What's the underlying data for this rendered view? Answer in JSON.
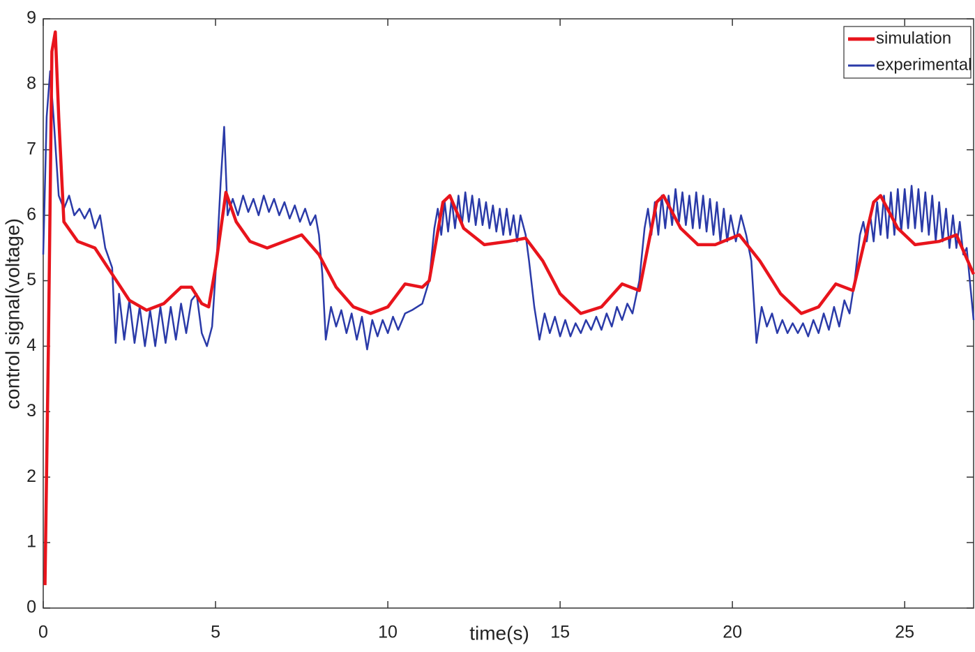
{
  "chart_data": {
    "type": "line",
    "xlabel": "time(s)",
    "ylabel": "control signal(voltage)",
    "xlim": [
      0,
      27
    ],
    "ylim": [
      0,
      9
    ],
    "xticks": [
      0,
      5,
      10,
      15,
      20,
      25
    ],
    "yticks": [
      0,
      1,
      2,
      3,
      4,
      5,
      6,
      7,
      8,
      9
    ],
    "legend": "upper right",
    "series": [
      {
        "name": "simulation",
        "color": "#e8141c",
        "x": [
          0.05,
          0.15,
          0.25,
          0.35,
          0.45,
          0.6,
          1,
          1.5,
          2,
          2.5,
          3,
          3.5,
          4,
          4.3,
          4.6,
          4.8,
          5,
          5.3,
          5.6,
          6,
          6.5,
          7,
          7.5,
          8,
          8.5,
          9,
          9.5,
          10,
          10.5,
          11,
          11.2,
          11.6,
          11.8,
          12.2,
          12.8,
          13.5,
          14,
          14.5,
          15,
          15.6,
          16.2,
          16.8,
          17.3,
          17.8,
          18,
          18.5,
          19,
          19.5,
          20.2,
          20.8,
          21.4,
          22,
          22.5,
          23,
          23.5,
          24.1,
          24.3,
          24.8,
          25.3,
          26,
          26.5,
          27
        ],
        "values": [
          0.35,
          4,
          8.5,
          8.8,
          7.5,
          5.9,
          5.6,
          5.5,
          5.1,
          4.7,
          4.55,
          4.65,
          4.9,
          4.9,
          4.65,
          4.6,
          5.2,
          6.35,
          5.9,
          5.6,
          5.5,
          5.6,
          5.7,
          5.4,
          4.9,
          4.6,
          4.5,
          4.6,
          4.95,
          4.9,
          5.0,
          6.2,
          6.3,
          5.8,
          5.55,
          5.6,
          5.65,
          5.3,
          4.8,
          4.5,
          4.6,
          4.95,
          4.85,
          6.2,
          6.3,
          5.8,
          5.55,
          5.55,
          5.7,
          5.3,
          4.8,
          4.5,
          4.6,
          4.95,
          4.85,
          6.2,
          6.3,
          5.8,
          5.55,
          5.6,
          5.7,
          5.1
        ]
      },
      {
        "name": "experimental",
        "color": "#2a3aa8",
        "x": [
          0,
          0.1,
          0.2,
          0.3,
          0.45,
          0.6,
          0.75,
          0.9,
          1.05,
          1.2,
          1.35,
          1.5,
          1.65,
          1.8,
          2.0,
          2.1,
          2.2,
          2.35,
          2.5,
          2.65,
          2.8,
          2.95,
          3.1,
          3.25,
          3.4,
          3.55,
          3.7,
          3.85,
          4.0,
          4.15,
          4.3,
          4.45,
          4.6,
          4.75,
          4.9,
          5.05,
          5.15,
          5.25,
          5.35,
          5.5,
          5.65,
          5.8,
          5.95,
          6.1,
          6.25,
          6.4,
          6.55,
          6.7,
          6.85,
          7.0,
          7.15,
          7.3,
          7.45,
          7.6,
          7.75,
          7.9,
          8.0,
          8.1,
          8.2,
          8.35,
          8.5,
          8.65,
          8.8,
          8.95,
          9.1,
          9.25,
          9.4,
          9.55,
          9.7,
          9.85,
          10.0,
          10.15,
          10.3,
          10.5,
          10.7,
          11.0,
          11.2,
          11.35,
          11.45,
          11.55,
          11.65,
          11.75,
          11.85,
          11.95,
          12.05,
          12.15,
          12.25,
          12.35,
          12.45,
          12.55,
          12.65,
          12.75,
          12.85,
          12.95,
          13.05,
          13.15,
          13.25,
          13.35,
          13.45,
          13.55,
          13.65,
          13.75,
          13.85,
          14.0,
          14.1,
          14.25,
          14.4,
          14.55,
          14.7,
          14.85,
          15.0,
          15.15,
          15.3,
          15.45,
          15.6,
          15.75,
          15.9,
          16.05,
          16.2,
          16.35,
          16.5,
          16.65,
          16.8,
          16.95,
          17.1,
          17.3,
          17.45,
          17.55,
          17.65,
          17.75,
          17.85,
          17.95,
          18.05,
          18.15,
          18.25,
          18.35,
          18.45,
          18.55,
          18.65,
          18.75,
          18.85,
          18.95,
          19.05,
          19.15,
          19.25,
          19.35,
          19.45,
          19.55,
          19.65,
          19.75,
          19.85,
          19.95,
          20.1,
          20.25,
          20.4,
          20.55,
          20.7,
          20.85,
          21.0,
          21.15,
          21.3,
          21.45,
          21.6,
          21.75,
          21.9,
          22.05,
          22.2,
          22.35,
          22.5,
          22.65,
          22.8,
          22.95,
          23.1,
          23.25,
          23.4,
          23.55,
          23.7,
          23.8,
          23.9,
          24.0,
          24.1,
          24.2,
          24.3,
          24.4,
          24.5,
          24.6,
          24.7,
          24.8,
          24.9,
          25.0,
          25.1,
          25.2,
          25.3,
          25.4,
          25.5,
          25.6,
          25.7,
          25.8,
          25.9,
          26.0,
          26.1,
          26.2,
          26.3,
          26.4,
          26.5,
          26.6,
          26.7,
          26.8,
          27.0
        ],
        "values": [
          5.4,
          7.5,
          8.2,
          7.5,
          6.3,
          6.1,
          6.3,
          6.0,
          6.1,
          5.95,
          6.1,
          5.8,
          6.0,
          5.5,
          5.2,
          4.05,
          4.8,
          4.1,
          4.7,
          4.05,
          4.6,
          4.0,
          4.55,
          4.0,
          4.6,
          4.05,
          4.6,
          4.1,
          4.65,
          4.2,
          4.7,
          4.8,
          4.2,
          4.0,
          4.3,
          5.5,
          6.5,
          7.35,
          6.0,
          6.25,
          6.0,
          6.3,
          6.05,
          6.25,
          6.0,
          6.3,
          6.05,
          6.25,
          6.0,
          6.2,
          5.95,
          6.15,
          5.9,
          6.1,
          5.85,
          6.0,
          5.7,
          5.1,
          4.1,
          4.6,
          4.3,
          4.55,
          4.2,
          4.5,
          4.1,
          4.45,
          3.95,
          4.4,
          4.15,
          4.4,
          4.2,
          4.45,
          4.25,
          4.5,
          4.55,
          4.65,
          5.0,
          5.8,
          6.1,
          5.7,
          6.2,
          5.75,
          6.25,
          5.8,
          6.3,
          5.85,
          6.35,
          5.9,
          6.3,
          5.85,
          6.25,
          5.85,
          6.2,
          5.8,
          6.15,
          5.75,
          6.1,
          5.7,
          6.1,
          5.7,
          6.0,
          5.6,
          6.0,
          5.7,
          5.3,
          4.6,
          4.1,
          4.5,
          4.2,
          4.45,
          4.15,
          4.4,
          4.15,
          4.35,
          4.2,
          4.4,
          4.25,
          4.45,
          4.25,
          4.5,
          4.3,
          4.6,
          4.4,
          4.65,
          4.5,
          5.0,
          5.8,
          6.1,
          5.7,
          6.2,
          5.7,
          6.3,
          5.8,
          6.3,
          5.85,
          6.4,
          5.9,
          6.35,
          5.85,
          6.3,
          5.8,
          6.35,
          5.8,
          6.3,
          5.75,
          6.25,
          5.7,
          6.2,
          5.6,
          6.1,
          5.6,
          6.0,
          5.6,
          6.0,
          5.7,
          5.3,
          4.05,
          4.6,
          4.3,
          4.5,
          4.2,
          4.4,
          4.2,
          4.35,
          4.2,
          4.35,
          4.15,
          4.4,
          4.2,
          4.5,
          4.25,
          4.6,
          4.3,
          4.7,
          4.5,
          5.0,
          5.7,
          5.9,
          5.6,
          6.0,
          5.6,
          6.2,
          5.7,
          6.3,
          5.65,
          6.35,
          5.7,
          6.4,
          5.75,
          6.4,
          5.8,
          6.45,
          5.8,
          6.4,
          5.75,
          6.35,
          5.7,
          6.3,
          5.6,
          6.2,
          5.6,
          6.1,
          5.5,
          6.0,
          5.5,
          5.9,
          5.4,
          5.5,
          4.4
        ]
      }
    ]
  }
}
